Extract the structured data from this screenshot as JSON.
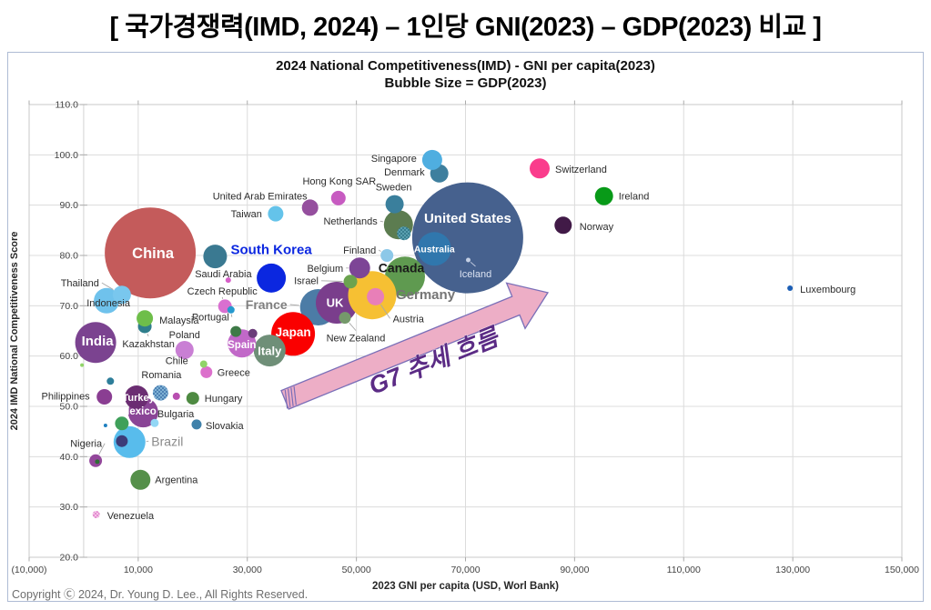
{
  "page": {
    "title": "[ 국가경쟁력(IMD, 2024) – 1인당 GNI(2023) – GDP(2023) 비교 ]",
    "copyright": "Copyright Ⓒ 2024, Dr. Young D. Lee., All Rights Reserved."
  },
  "chart_data": {
    "type": "bubble",
    "title": "2024 National Competitiveness(IMD) - GNI per capita(2023)",
    "subtitle": "Bubble Size = GDP(2023)",
    "xlabel": "2023 GNI per capita (USD, Worl Bank)",
    "ylabel": "2024 IMD National Competitiveness Score",
    "xlim": [
      -10000,
      150000
    ],
    "ylim": [
      20,
      110
    ],
    "grid": true,
    "x_ticks": [
      {
        "v": -10000,
        "label": "(10,000)"
      },
      {
        "v": 10000,
        "label": "10,000"
      },
      {
        "v": 30000,
        "label": "30,000"
      },
      {
        "v": 50000,
        "label": "50,000"
      },
      {
        "v": 70000,
        "label": "70,000"
      },
      {
        "v": 90000,
        "label": "90,000"
      },
      {
        "v": 110000,
        "label": "110,000"
      },
      {
        "v": 130000,
        "label": "130,000"
      },
      {
        "v": 150000,
        "label": "150,000"
      }
    ],
    "y_ticks": [
      {
        "v": 110,
        "label": "110.0"
      },
      {
        "v": 100,
        "label": "100.0"
      },
      {
        "v": 90,
        "label": "90.0"
      },
      {
        "v": 80,
        "label": "80.0"
      },
      {
        "v": 70,
        "label": "70.0"
      },
      {
        "v": 60,
        "label": "60.0"
      },
      {
        "v": 50,
        "label": "50.0"
      },
      {
        "v": 40,
        "label": "40.0"
      },
      {
        "v": 30,
        "label": "30.0"
      },
      {
        "v": 20,
        "label": "20.0"
      }
    ],
    "trend_arrow": {
      "label": "G7 추세 흐름",
      "from_gni": 36900,
      "from_score": 51.3,
      "to_gni": 85100,
      "to_score": 72.6,
      "fill": "#EDAEC6",
      "stroke": "#7A6FB8",
      "label_color": "#5B2B85",
      "label_gni": 64700,
      "label_score": 57.4,
      "label_rotation": -22
    },
    "series": [
      {
        "name": "United States",
        "gni": 70400,
        "score": 83.5,
        "r": 61,
        "color": "#46618E",
        "label": {
          "mode": "inside",
          "dy": -22,
          "size": 15
        }
      },
      {
        "name": "China",
        "gni": 12200,
        "score": 80.5,
        "r": 50,
        "color": "#C45B5B",
        "label": {
          "mode": "inside",
          "dx": 3,
          "dy": 0,
          "size": 16.5
        }
      },
      {
        "name": "Canada",
        "gni": 58900,
        "score": 75.8,
        "r": 22,
        "color": "#5F9A50",
        "label": {
          "mode": "out",
          "anchor": "middle",
          "dx": -4,
          "dy": -10,
          "color": "#1A1A1A",
          "bold": true,
          "size": 14
        }
      },
      {
        "name": "France",
        "gni": 43000,
        "score": 69.7,
        "r": 20,
        "color": "#4C7CA6",
        "label": {
          "mode": "out",
          "anchor": "end",
          "dx": -34,
          "dy": -3,
          "color": "#7F7F7F",
          "bold": true,
          "size": 14,
          "leader": true
        }
      },
      {
        "name": "UK",
        "gni": 46400,
        "score": 70.6,
        "r": 23,
        "color": "#7A3E8C",
        "label": {
          "mode": "inside",
          "dx": -2,
          "size": 13
        }
      },
      {
        "name": "Japan",
        "gni": 38400,
        "score": 64.4,
        "r": 24,
        "color": "#FA0000",
        "label": {
          "mode": "inside",
          "dy": -2,
          "size": 13.5
        }
      },
      {
        "name": "Italy",
        "gni": 34100,
        "score": 61.1,
        "r": 17.5,
        "color": "#6F8F78",
        "label": {
          "mode": "inside",
          "size": 13
        }
      },
      {
        "name": "Germany",
        "gni": 52900,
        "score": 72.1,
        "r": 26.5,
        "color": "#F6C033",
        "label": {
          "mode": "out",
          "anchor": "start",
          "dx": 26,
          "dy": -1,
          "color": "#757575",
          "bold": true,
          "size": 15,
          "leader": true
        }
      },
      {
        "name": "South Korea",
        "gni": 34400,
        "score": 75.5,
        "r": 16,
        "color": "#0B27E0",
        "label": {
          "mode": "out",
          "anchor": "middle",
          "dx": 0,
          "dy": -32,
          "color": "#0B27E0",
          "bold": true,
          "size": 15
        }
      },
      {
        "name": "Australia",
        "gni": 64300,
        "score": 81.3,
        "r": 18.5,
        "color": "#3077AD",
        "label": {
          "mode": "inside",
          "size": 10.5
        }
      },
      {
        "name": "Brazil",
        "gni": 8400,
        "score": 42.9,
        "r": 17.5,
        "color": "#58BCEC",
        "label": {
          "mode": "out",
          "anchor": "start",
          "dx": 24,
          "dy": -1,
          "color": "#8A8A8A",
          "size": 14,
          "leader": true
        }
      },
      {
        "name": "Mexico",
        "gni": 10900,
        "score": 48.8,
        "r": 16.5,
        "color": "#8A4596",
        "label": {
          "mode": "inside",
          "dx": -5,
          "dy": -2,
          "size": 11.5
        }
      },
      {
        "name": "Turkey",
        "gni": 9700,
        "score": 51.8,
        "r": 13,
        "color": "#6B2D72",
        "label": {
          "mode": "inside",
          "dx": 2,
          "size": 11
        }
      },
      {
        "name": "Spain",
        "gni": 29000,
        "score": 62.5,
        "r": 15.5,
        "color": "#C168C8",
        "label": {
          "mode": "inside",
          "dy": 1,
          "size": 11.5
        }
      },
      {
        "name": "Netherlands",
        "gni": 57700,
        "score": 86.1,
        "r": 16,
        "color": "#5C7C50",
        "label": {
          "mode": "out",
          "anchor": "end",
          "dx": -23,
          "dy": -4,
          "leader": true
        }
      },
      {
        "name": "Indonesia",
        "gni": 4200,
        "score": 71.0,
        "r": 14,
        "color": "#6FC2EC",
        "label": {
          "mode": "out",
          "anchor": "middle",
          "dx": 2,
          "dy": 2
        }
      },
      {
        "name": "Thailand",
        "gni": 7000,
        "score": 72.2,
        "r": 10,
        "color": "#79C7EE",
        "label": {
          "mode": "out",
          "anchor": "end",
          "dx": -25,
          "dy": -13,
          "leader": true
        }
      },
      {
        "name": "India",
        "gni": 2200,
        "score": 62.7,
        "r": 22.5,
        "color": "#7B4390",
        "label": {
          "mode": "inside",
          "dx": 2,
          "dy": -2,
          "size": 15
        }
      },
      {
        "name": "Argentina",
        "gni": 10400,
        "score": 35.4,
        "r": 11,
        "color": "#55904A",
        "label": {
          "mode": "out",
          "anchor": "start",
          "dx": 16,
          "dy": 0
        }
      },
      {
        "name": "Belgium",
        "gni": 50600,
        "score": 77.5,
        "r": 11.5,
        "color": "#7D4596",
        "label": {
          "mode": "out",
          "anchor": "end",
          "dx": -18,
          "dy": 0,
          "leader": true
        }
      },
      {
        "name": "Saudi Arabia",
        "gni": 24100,
        "score": 79.8,
        "r": 13,
        "color": "#3A7991",
        "label": {
          "mode": "out",
          "anchor": "middle",
          "dx": 9,
          "dy": 19,
          "leader": true
        }
      },
      {
        "name": "United Arab Emirates",
        "gni": 41500,
        "score": 89.5,
        "r": 9,
        "color": "#954F9E",
        "label": {
          "mode": "out",
          "anchor": "middle",
          "dx": -55,
          "dy": -13
        }
      },
      {
        "name": "Poland",
        "gni": 18500,
        "score": 61.2,
        "r": 10,
        "color": "#C97FD4",
        "label": {
          "mode": "out",
          "anchor": "middle",
          "dx": 0,
          "dy": -17,
          "leader": true
        }
      },
      {
        "name": "Romania",
        "gni": 14100,
        "score": 52.7,
        "r": 8.5,
        "color": "#7FB2D4",
        "pattern_dot": "#2A5E9E",
        "label": {
          "mode": "out",
          "anchor": "middle",
          "dx": 1,
          "dy": -20
        }
      },
      {
        "name": "Philippines",
        "gni": 3800,
        "score": 51.9,
        "r": 8.5,
        "color": "#8A3E92",
        "label": {
          "mode": "out",
          "anchor": "end",
          "dx": -16,
          "dy": -1
        }
      },
      {
        "name": "Nigeria",
        "gni": 2200,
        "score": 39.2,
        "r": 7,
        "color": "#93479B",
        "label": {
          "mode": "out",
          "anchor": "end",
          "dx": 7,
          "dy": -19,
          "leader": true
        }
      },
      {
        "name": "Switzerland",
        "gni": 83600,
        "score": 97.3,
        "r": 11,
        "color": "#FA3C8C",
        "label": {
          "mode": "out",
          "anchor": "start",
          "dx": 17,
          "dy": 1
        }
      },
      {
        "name": "Ireland",
        "gni": 95400,
        "score": 91.8,
        "r": 10,
        "color": "#089A18",
        "label": {
          "mode": "out",
          "anchor": "start",
          "dx": 16,
          "dy": 0
        }
      },
      {
        "name": "Norway",
        "gni": 87900,
        "score": 86.0,
        "r": 9.5,
        "color": "#411A47",
        "label": {
          "mode": "out",
          "anchor": "start",
          "dx": 18,
          "dy": 1
        }
      },
      {
        "name": "Austria",
        "gni": 53500,
        "score": 71.8,
        "r": 9.5,
        "color": "#E87FB8",
        "label": {
          "mode": "out",
          "anchor": "start",
          "dx": 19,
          "dy": 24,
          "leader": true
        }
      },
      {
        "name": "Israel",
        "gni": 48900,
        "score": 74.8,
        "r": 7.5,
        "color": "#6BA34F",
        "label": {
          "mode": "out",
          "anchor": "end",
          "dx": -35,
          "dy": -1,
          "leader": true
        }
      },
      {
        "name": "Sweden",
        "gni": 57000,
        "score": 90.2,
        "r": 10,
        "color": "#3A7F9C",
        "label": {
          "mode": "out",
          "anchor": "middle",
          "dx": -1,
          "dy": -19
        }
      },
      {
        "name": "Denmark",
        "gni": 65200,
        "score": 96.3,
        "r": 10,
        "color": "#3E7F9E",
        "label": {
          "mode": "out",
          "anchor": "end",
          "dx": -16,
          "dy": -2
        }
      },
      {
        "name": "Singapore",
        "gni": 63900,
        "score": 99.0,
        "r": 11,
        "color": "#4FAEE0",
        "label": {
          "mode": "out",
          "anchor": "end",
          "dx": -17,
          "dy": -2
        }
      },
      {
        "name": "Hong Kong SAR",
        "gni": 46700,
        "score": 91.4,
        "r": 8,
        "color": "#C75BC1",
        "label": {
          "mode": "out",
          "anchor": "middle",
          "dx": 1,
          "dy": -19
        }
      },
      {
        "name": "Taiwan",
        "gni": 35200,
        "score": 88.3,
        "r": 8.5,
        "color": "#64C3EA",
        "label": {
          "mode": "out",
          "anchor": "end",
          "dx": -15,
          "dy": 0
        }
      },
      {
        "name": "Kazakhstan",
        "gni": 11200,
        "score": 65.9,
        "r": 7.5,
        "color": "#2F7E8C",
        "label": {
          "mode": "out",
          "anchor": "middle",
          "dx": 4,
          "dy": 19,
          "leader": true
        }
      },
      {
        "name": "Malaysia",
        "gni": 11200,
        "score": 67.5,
        "r": 9,
        "color": "#6EBE4A",
        "label": {
          "mode": "out",
          "anchor": "start",
          "dx": 16,
          "dy": 2
        }
      },
      {
        "name": "Czech Republic",
        "gni": 25900,
        "score": 69.9,
        "r": 7.5,
        "color": "#D96FD0",
        "label": {
          "mode": "out",
          "anchor": "middle",
          "dx": -3,
          "dy": -17,
          "leader": true
        }
      },
      {
        "name": "Hungary",
        "gni": 20000,
        "score": 51.6,
        "r": 7,
        "color": "#4E8A42",
        "label": {
          "mode": "out",
          "anchor": "start",
          "dx": 13,
          "dy": 0
        }
      },
      {
        "name": "Greece",
        "gni": 22500,
        "score": 56.8,
        "r": 6.5,
        "color": "#DC70CC",
        "label": {
          "mode": "out",
          "anchor": "start",
          "dx": 12,
          "dy": 0
        }
      },
      {
        "name": "Finland",
        "gni": 55600,
        "score": 80.0,
        "r": 7,
        "color": "#8CC8E8",
        "label": {
          "mode": "out",
          "anchor": "end",
          "dx": -12,
          "dy": -6,
          "leader": true
        }
      },
      {
        "name": "New Zealand",
        "gni": 47900,
        "score": 67.6,
        "r": 6.5,
        "color": "#75996B",
        "label": {
          "mode": "out",
          "anchor": "middle",
          "dx": 12,
          "dy": 22,
          "leader": true
        }
      },
      {
        "name": "Slovakia",
        "gni": 20700,
        "score": 46.4,
        "r": 5.5,
        "color": "#3F81AA",
        "label": {
          "mode": "out",
          "anchor": "start",
          "dx": 10,
          "dy": 1
        }
      },
      {
        "name": "Bulgaria",
        "gni": 13000,
        "score": 46.7,
        "r": 4.5,
        "color": "#92D7F5",
        "label": {
          "mode": "out",
          "anchor": "start",
          "dx": 3,
          "dy": -10
        }
      },
      {
        "name": "Chile",
        "gni": 22000,
        "score": 58.4,
        "r": 4,
        "color": "#90D468",
        "label": {
          "mode": "out",
          "anchor": "end",
          "dx": -17,
          "dy": -4
        }
      },
      {
        "name": "Portugal",
        "gni": 27000,
        "score": 69.2,
        "r": 4,
        "color": "#2599CE",
        "label": {
          "mode": "out",
          "anchor": "end",
          "dx": -2,
          "dy": 8,
          "leader": true
        }
      },
      {
        "name": "Venezuela",
        "gni": 2300,
        "score": 28.5,
        "r": 4,
        "color": "#F4C2E6",
        "pattern_dot": "#D868C2",
        "label": {
          "mode": "out",
          "anchor": "start",
          "dx": 12,
          "dy": 1
        }
      },
      {
        "name": "Iceland",
        "gni": 70500,
        "score": 79.1,
        "r": 2.5,
        "color": "#C4CFE4",
        "label": {
          "mode": "out",
          "anchor": "middle",
          "dx": 8,
          "dy": 15,
          "color": "#DCE3F2",
          "leader": true,
          "leader_color": "#C4CDE2"
        }
      },
      {
        "name": "Luxembourg",
        "gni": 129500,
        "score": 73.5,
        "r": 3,
        "color": "#1B5EB5",
        "label": {
          "mode": "out",
          "anchor": "start",
          "dx": 11,
          "dy": 1
        }
      }
    ],
    "extra_points": [
      {
        "gni": 26500,
        "score": 75.1,
        "r": 3,
        "color": "#D65FC8"
      },
      {
        "gni": 58700,
        "score": 84.4,
        "r": 7.5,
        "color": "#5AA0B0",
        "pattern_dot": "#1F6578"
      },
      {
        "gni": 27900,
        "score": 64.9,
        "r": 6,
        "color": "#3E7A47"
      },
      {
        "gni": 31000,
        "score": 64.5,
        "r": 5,
        "color": "#6B3C7A"
      },
      {
        "gni": 4900,
        "score": 55.0,
        "r": 4,
        "color": "#2E7E9A"
      },
      {
        "gni": 17000,
        "score": 52.0,
        "r": 4,
        "color": "#B84FB0"
      },
      {
        "gni": 7000,
        "score": 43.1,
        "r": 6.5,
        "color": "#3C3C78"
      },
      {
        "gni": 7000,
        "score": 46.6,
        "r": 7.5,
        "color": "#3FA05A"
      },
      {
        "gni": 2500,
        "score": 39.0,
        "r": 2.5,
        "color": "#2E6E35"
      },
      {
        "gni": 4000,
        "score": 46.2,
        "r": 2,
        "color": "#2080C0"
      },
      {
        "gni": -300,
        "score": 58.2,
        "r": 2,
        "color": "#90D468"
      }
    ]
  }
}
